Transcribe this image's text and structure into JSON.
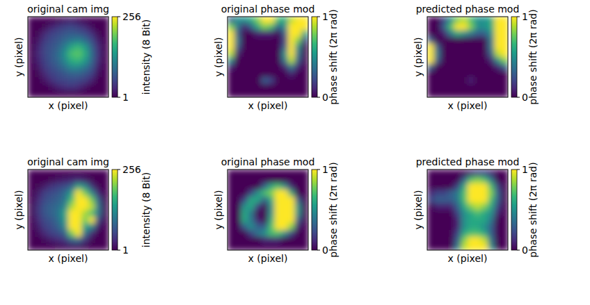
{
  "chart_data": [
    {
      "type": "heatmap",
      "title": "original cam img",
      "x_label": "x (pixel)",
      "y_label": "y (pixel)",
      "tick_labels": false,
      "colorbar": {
        "label": "intensity (8 Bit)",
        "range": [
          1,
          256
        ],
        "ticks": [
          1,
          256
        ]
      },
      "cells": [
        [
          1,
          1,
          1,
          1,
          5,
          15,
          20,
          10,
          1,
          1,
          1,
          1
        ],
        [
          1,
          1,
          5,
          25,
          40,
          50,
          55,
          45,
          30,
          10,
          1,
          1
        ],
        [
          1,
          5,
          30,
          50,
          60,
          70,
          75,
          70,
          60,
          35,
          5,
          1
        ],
        [
          1,
          15,
          45,
          60,
          70,
          85,
          100,
          110,
          90,
          60,
          20,
          1
        ],
        [
          1,
          25,
          55,
          65,
          80,
          110,
          150,
          170,
          140,
          80,
          30,
          1
        ],
        [
          1,
          30,
          55,
          70,
          90,
          130,
          180,
          190,
          160,
          90,
          35,
          1
        ],
        [
          1,
          25,
          50,
          70,
          85,
          120,
          160,
          170,
          140,
          85,
          30,
          1
        ],
        [
          1,
          15,
          45,
          60,
          75,
          95,
          120,
          120,
          100,
          70,
          20,
          1
        ],
        [
          1,
          5,
          30,
          50,
          60,
          70,
          80,
          80,
          70,
          50,
          10,
          1
        ],
        [
          1,
          1,
          15,
          35,
          50,
          55,
          60,
          55,
          45,
          25,
          1,
          1
        ],
        [
          1,
          1,
          1,
          10,
          25,
          35,
          40,
          30,
          15,
          1,
          1,
          1
        ],
        [
          1,
          1,
          1,
          1,
          1,
          1,
          1,
          1,
          1,
          1,
          1,
          1
        ]
      ]
    },
    {
      "type": "heatmap",
      "title": "original phase mod",
      "x_label": "x (pixel)",
      "y_label": "y (pixel)",
      "tick_labels": false,
      "colorbar": {
        "label": "phase shift (2π rad)",
        "range": [
          0,
          1
        ],
        "ticks": [
          0,
          1
        ]
      },
      "cells": [
        [
          0.3,
          0.5,
          0.5,
          0.6,
          0.8,
          1,
          1,
          0.7,
          0.6,
          0.9,
          1,
          1
        ],
        [
          0.8,
          0.4,
          0.1,
          0.3,
          0.6,
          0.8,
          0.7,
          0.3,
          0.5,
          1,
          1,
          1
        ],
        [
          1,
          0.3,
          0,
          0,
          0.1,
          0.1,
          0.1,
          0,
          0.3,
          1,
          1,
          0.6
        ],
        [
          1,
          0.4,
          0,
          0,
          0,
          0,
          0,
          0,
          0.2,
          1,
          0.8,
          0.2
        ],
        [
          1,
          0.3,
          0,
          0,
          0,
          0,
          0,
          0,
          0.3,
          1,
          0.5,
          0
        ],
        [
          0.9,
          0.1,
          0,
          0,
          0,
          0,
          0,
          0,
          0.5,
          1,
          0.4,
          0
        ],
        [
          0.5,
          0,
          0,
          0,
          0,
          0,
          0,
          0,
          0.4,
          0.9,
          0.3,
          0
        ],
        [
          0.1,
          0,
          0,
          0,
          0,
          0,
          0,
          0,
          0.1,
          0.4,
          0.1,
          0
        ],
        [
          0,
          0,
          0,
          0,
          0,
          0,
          0,
          0,
          0,
          0.1,
          0,
          0
        ],
        [
          0,
          0,
          0,
          0,
          0,
          0.3,
          0.2,
          0,
          0,
          0,
          0,
          0
        ],
        [
          0,
          0,
          0,
          0,
          0,
          0,
          0,
          0,
          0,
          0,
          0,
          0
        ],
        [
          0,
          0,
          0,
          0,
          0,
          0,
          0,
          0,
          0,
          0,
          0,
          0
        ]
      ]
    },
    {
      "type": "heatmap",
      "title": "predicted phase mod",
      "x_label": "x (pixel)",
      "y_label": "y (pixel)",
      "tick_labels": false,
      "colorbar": {
        "label": "phase shift (2π rad)",
        "range": [
          0,
          1
        ],
        "ticks": [
          0,
          1
        ]
      },
      "cells": [
        [
          0,
          0,
          0.2,
          0.5,
          0.8,
          0.9,
          0.7,
          0.5,
          0.5,
          0.6,
          1,
          1
        ],
        [
          0,
          0,
          0.3,
          0.7,
          1,
          1,
          0.8,
          0.5,
          0.5,
          0.6,
          1,
          1
        ],
        [
          0,
          0,
          0.1,
          0.4,
          0.6,
          0.5,
          0.4,
          0.3,
          0.3,
          0.5,
          1,
          1
        ],
        [
          0.3,
          0,
          0,
          0,
          0,
          0,
          0,
          0,
          0,
          0.4,
          1,
          1
        ],
        [
          1,
          0.3,
          0,
          0,
          0,
          0,
          0,
          0,
          0,
          0.4,
          1,
          1
        ],
        [
          1,
          0.4,
          0,
          0,
          0,
          0,
          0,
          0,
          0,
          0.3,
          0.9,
          1
        ],
        [
          1,
          0.3,
          0,
          0,
          0,
          0,
          0,
          0,
          0,
          0.1,
          0.5,
          0.8
        ],
        [
          0.3,
          0,
          0,
          0,
          0,
          0,
          0,
          0,
          0,
          0,
          0.1,
          0.3
        ],
        [
          0,
          0,
          0,
          0,
          0,
          0,
          0,
          0,
          0,
          0,
          0,
          0
        ],
        [
          0,
          0,
          0,
          0,
          0,
          0,
          0.1,
          0,
          0,
          0,
          0,
          0
        ],
        [
          0,
          0,
          0,
          0,
          0,
          0,
          0,
          0,
          0,
          0,
          0,
          0
        ],
        [
          0,
          0,
          0,
          0,
          0,
          0,
          0,
          0,
          0,
          0,
          0,
          0
        ]
      ]
    },
    {
      "type": "heatmap",
      "title": "original cam img",
      "x_label": "x (pixel)",
      "y_label": "y (pixel)",
      "tick_labels": false,
      "colorbar": {
        "label": "intensity (8 Bit)",
        "range": [
          1,
          256
        ],
        "ticks": [
          1,
          256
        ]
      },
      "cells": [
        [
          1,
          1,
          1,
          1,
          1,
          1,
          1,
          1,
          1,
          1,
          1,
          1
        ],
        [
          1,
          1,
          1,
          5,
          15,
          20,
          25,
          30,
          20,
          5,
          1,
          1
        ],
        [
          1,
          5,
          20,
          40,
          50,
          60,
          80,
          150,
          120,
          40,
          5,
          1
        ],
        [
          1,
          20,
          50,
          60,
          70,
          90,
          140,
          256,
          200,
          120,
          30,
          1
        ],
        [
          1,
          30,
          60,
          70,
          80,
          100,
          180,
          256,
          256,
          200,
          80,
          1
        ],
        [
          5,
          40,
          70,
          80,
          90,
          120,
          220,
          256,
          256,
          230,
          100,
          5
        ],
        [
          5,
          40,
          70,
          80,
          100,
          150,
          256,
          256,
          220,
          180,
          100,
          5
        ],
        [
          1,
          30,
          60,
          70,
          90,
          140,
          256,
          256,
          200,
          256,
          60,
          1
        ],
        [
          1,
          20,
          50,
          60,
          80,
          120,
          256,
          256,
          150,
          120,
          20,
          1
        ],
        [
          1,
          10,
          30,
          50,
          60,
          80,
          200,
          256,
          100,
          30,
          1,
          1
        ],
        [
          1,
          1,
          10,
          20,
          30,
          40,
          80,
          90,
          40,
          5,
          1,
          1
        ],
        [
          1,
          1,
          1,
          1,
          5,
          10,
          10,
          10,
          5,
          1,
          1,
          1
        ]
      ]
    },
    {
      "type": "heatmap",
      "title": "original phase mod",
      "x_label": "x (pixel)",
      "y_label": "y (pixel)",
      "tick_labels": false,
      "colorbar": {
        "label": "phase shift (2π rad)",
        "range": [
          0,
          1
        ],
        "ticks": [
          0,
          1
        ]
      },
      "cells": [
        [
          0,
          0,
          0,
          0,
          0,
          0,
          0,
          0,
          0,
          0,
          0,
          0
        ],
        [
          0,
          0,
          0,
          0,
          0,
          0,
          0,
          0,
          0,
          0,
          0,
          0
        ],
        [
          0,
          0,
          0,
          0,
          0,
          0.3,
          0.6,
          0.7,
          0.5,
          0.1,
          0,
          0
        ],
        [
          0,
          0,
          0,
          0.2,
          0.5,
          0.7,
          0.8,
          1,
          1,
          0.6,
          0,
          0
        ],
        [
          0,
          0,
          0.2,
          0.6,
          0.6,
          0.3,
          0.6,
          1,
          1,
          1,
          0.3,
          0
        ],
        [
          0,
          0,
          0.5,
          0.6,
          0.2,
          0,
          0.5,
          1,
          1,
          1,
          0.5,
          0
        ],
        [
          0,
          0,
          0.6,
          0.4,
          0,
          0,
          0.5,
          1,
          1,
          1,
          0.5,
          0
        ],
        [
          0,
          0,
          0.6,
          0.4,
          0.1,
          0,
          0.6,
          1,
          1,
          1,
          0.3,
          0
        ],
        [
          0,
          0,
          0.3,
          0.5,
          0.3,
          0.3,
          0.7,
          1,
          1,
          0.8,
          0.1,
          0
        ],
        [
          0,
          0,
          0,
          0.2,
          0.4,
          0.5,
          0.7,
          0.7,
          0.5,
          0.2,
          0,
          0
        ],
        [
          0,
          0,
          0,
          0,
          0,
          0.1,
          0.1,
          0.1,
          0,
          0,
          0,
          0
        ],
        [
          0,
          0,
          0,
          0,
          0,
          0,
          0,
          0,
          0,
          0,
          0,
          0
        ]
      ]
    },
    {
      "type": "heatmap",
      "title": "predicted phase mod",
      "x_label": "x (pixel)",
      "y_label": "y (pixel)",
      "tick_labels": false,
      "colorbar": {
        "label": "phase shift (2π rad)",
        "range": [
          0,
          1
        ],
        "ticks": [
          0,
          1
        ]
      },
      "cells": [
        [
          0,
          0,
          0,
          0,
          0,
          0,
          0.1,
          0.2,
          0.2,
          0.1,
          0,
          0
        ],
        [
          0,
          0,
          0,
          0,
          0,
          0.3,
          0.7,
          0.8,
          0.7,
          0.4,
          0,
          0
        ],
        [
          0,
          0,
          0,
          0,
          0.2,
          0.6,
          1,
          1,
          1,
          0.7,
          0.2,
          0
        ],
        [
          0.1,
          0.2,
          0.2,
          0.3,
          0.4,
          0.7,
          1,
          1,
          1,
          0.8,
          0.3,
          0
        ],
        [
          0.2,
          0.3,
          0.3,
          0.3,
          0.4,
          0.7,
          1,
          1,
          1,
          0.7,
          0.3,
          0
        ],
        [
          0,
          0.1,
          0.1,
          0.1,
          0.3,
          0.6,
          0.8,
          0.9,
          0.8,
          0.6,
          0.2,
          0
        ],
        [
          0,
          0,
          0,
          0,
          0.2,
          0.5,
          0.6,
          0.7,
          0.6,
          0.5,
          0.1,
          0
        ],
        [
          0,
          0,
          0,
          0,
          0.1,
          0.5,
          0.6,
          0.6,
          0.6,
          0.4,
          0,
          0
        ],
        [
          0,
          0,
          0,
          0,
          0.1,
          0.5,
          0.6,
          0.6,
          0.5,
          0.3,
          0,
          0
        ],
        [
          0,
          0,
          0,
          0,
          0.2,
          0.6,
          0.7,
          0.7,
          0.6,
          0.3,
          0,
          0
        ],
        [
          0,
          0,
          0,
          0,
          0.3,
          0.8,
          1,
          1,
          0.9,
          0.4,
          0,
          0
        ],
        [
          0,
          0,
          0,
          0,
          0.4,
          0.9,
          1,
          1,
          1,
          0.5,
          0,
          0
        ]
      ]
    }
  ]
}
